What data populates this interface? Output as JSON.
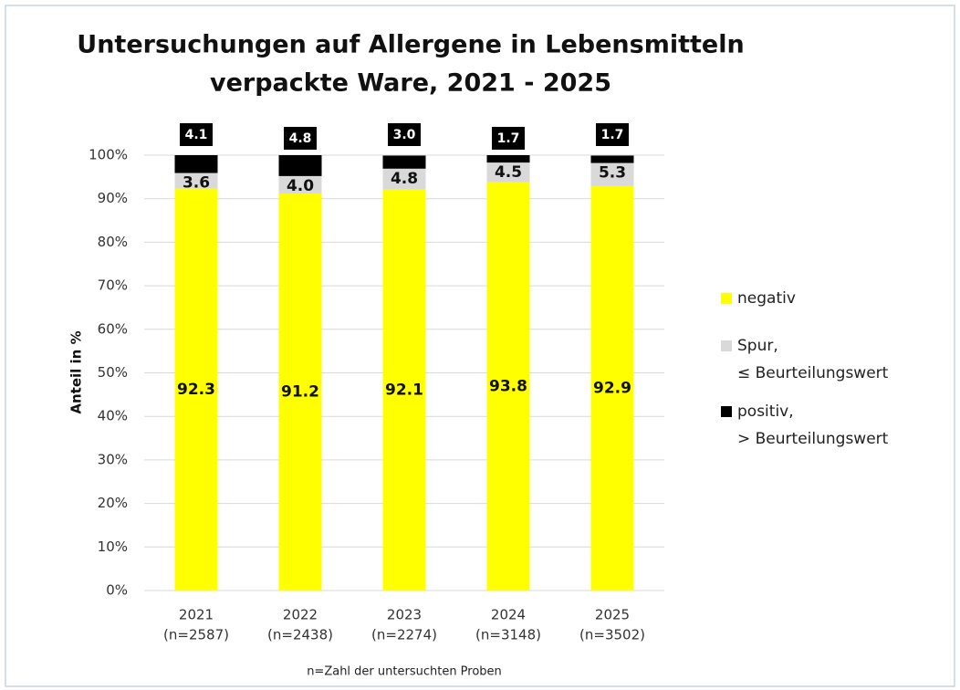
{
  "chart_data": {
    "type": "stacked_bar",
    "title": "Untersuchungen auf Allergene in Lebensmitteln",
    "subtitle": "verpackte Ware, 2021 - 2025",
    "y_label": "Anteil in %",
    "x_label": "n=Zahl der untersuchten Proben",
    "categories": [
      [
        "2021",
        "(n=2587)"
      ],
      [
        "2022",
        "(n=2438)"
      ],
      [
        "2023",
        "(n=2274)"
      ],
      [
        "2024",
        "(n=3148)"
      ],
      [
        "2025",
        "(n=3502)"
      ]
    ],
    "series": [
      {
        "name": "negativ",
        "color": "#ffff00",
        "values": [
          92.3,
          91.2,
          92.1,
          93.8,
          92.9
        ],
        "value_labels": [
          "92.3",
          "91.2",
          "92.1",
          "93.8",
          "92.9"
        ]
      },
      {
        "name": "Spur,\n≤ Beurteilungswert",
        "color": "#d9d9d9",
        "values": [
          3.6,
          4.0,
          4.8,
          4.5,
          5.3
        ],
        "value_labels": [
          "3.6",
          "4.0",
          "4.8",
          "4.5",
          "5.3"
        ]
      },
      {
        "name": "positiv,\n> Beurteilungswert",
        "color": "#000000",
        "values": [
          4.1,
          4.8,
          3.0,
          1.7,
          1.7
        ],
        "value_labels": [
          "4.1",
          "4.8",
          "3.0",
          "1.7",
          "1.7"
        ]
      }
    ],
    "ylim": [
      0,
      100
    ],
    "yticks": [
      {
        "value": 0,
        "label": "0%"
      },
      {
        "value": 10,
        "label": "10%"
      },
      {
        "value": 20,
        "label": "20%"
      },
      {
        "value": 30,
        "label": "30%"
      },
      {
        "value": 40,
        "label": "40%"
      },
      {
        "value": 50,
        "label": "50%"
      },
      {
        "value": 60,
        "label": "60%"
      },
      {
        "value": 70,
        "label": "70%"
      },
      {
        "value": 80,
        "label": "80%"
      },
      {
        "value": 90,
        "label": "90%"
      },
      {
        "value": 100,
        "label": "100%"
      }
    ],
    "grid": true,
    "legend": "right"
  }
}
